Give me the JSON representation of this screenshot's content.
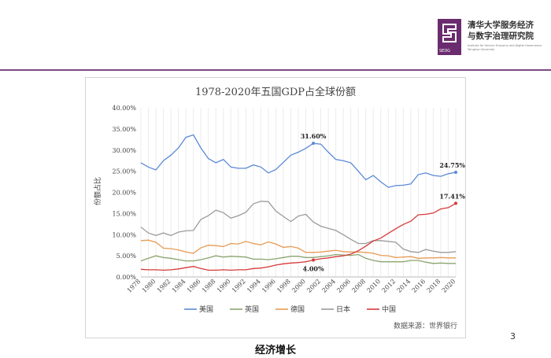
{
  "header": {
    "logo_name_line1": "清华大学服务经济",
    "logo_name_line2": "与数字治理研究院",
    "logo_abbr": "SEDG",
    "logo_english_line1": "Institute for Service Economy and Digital Governance",
    "logo_english_line2": "Tsinghua University"
  },
  "footer": {
    "page_number": "3",
    "caption": "经济增长"
  },
  "colors": {
    "us": "#5b8ad6",
    "uk": "#8aa56f",
    "de": "#e89b56",
    "jp": "#9c9c9c",
    "cn": "#d63a3a",
    "accent": "#7b4a82"
  },
  "chart_data": {
    "type": "line",
    "title": "1978-2020年五国GDP占全球份额",
    "ylabel": "份额占比",
    "xlabel": "",
    "source": "数据来源：世界银行",
    "ylim": [
      0,
      40
    ],
    "y_ticks": [
      "0.00%",
      "5.00%",
      "10.00%",
      "15.00%",
      "20.00%",
      "25.00%",
      "30.00%",
      "35.00%",
      "40.00%"
    ],
    "x": [
      1978,
      1979,
      1980,
      1981,
      1982,
      1983,
      1984,
      1985,
      1986,
      1987,
      1988,
      1989,
      1990,
      1991,
      1992,
      1993,
      1994,
      1995,
      1996,
      1997,
      1998,
      1999,
      2000,
      2001,
      2002,
      2003,
      2004,
      2005,
      2006,
      2007,
      2008,
      2009,
      2010,
      2011,
      2012,
      2013,
      2014,
      2015,
      2016,
      2017,
      2018,
      2019,
      2020
    ],
    "x_ticks": [
      "1978",
      "1980",
      "1982",
      "1984",
      "1986",
      "1988",
      "1990",
      "1992",
      "1994",
      "1996",
      "1998",
      "2000",
      "2002",
      "2004",
      "2006",
      "2008",
      "2010",
      "2012",
      "2014",
      "2016",
      "2018",
      "2020"
    ],
    "grid": true,
    "legend_position": "bottom",
    "series": [
      {
        "name": "美国",
        "color": "#5b8ad6",
        "values": [
          27.0,
          26.0,
          25.3,
          27.5,
          28.8,
          30.5,
          33.0,
          33.6,
          30.5,
          28.0,
          27.0,
          27.8,
          26.0,
          25.7,
          25.7,
          26.5,
          26.0,
          24.6,
          25.4,
          27.1,
          28.8,
          29.5,
          30.4,
          31.6,
          31.4,
          29.5,
          27.8,
          27.5,
          27.0,
          25.0,
          23.0,
          24.0,
          22.5,
          21.2,
          21.6,
          21.7,
          22.0,
          24.2,
          24.6,
          24.0,
          23.8,
          24.4,
          24.75
        ]
      },
      {
        "name": "英国",
        "color": "#8aa56f",
        "values": [
          3.8,
          4.4,
          5.0,
          4.6,
          4.4,
          4.1,
          3.8,
          3.8,
          4.1,
          4.5,
          5.0,
          4.7,
          4.9,
          4.8,
          4.7,
          4.2,
          4.2,
          4.1,
          4.3,
          4.6,
          4.9,
          4.9,
          4.6,
          4.6,
          4.8,
          5.0,
          5.3,
          5.2,
          5.1,
          5.3,
          4.4,
          3.9,
          3.6,
          3.6,
          3.6,
          3.6,
          3.9,
          3.9,
          3.5,
          3.2,
          3.3,
          3.2,
          3.2
        ]
      },
      {
        "name": "德国",
        "color": "#e89b56",
        "values": [
          8.6,
          8.7,
          8.2,
          6.8,
          6.7,
          6.4,
          5.9,
          5.6,
          6.9,
          7.5,
          7.4,
          7.2,
          7.9,
          7.8,
          8.4,
          7.9,
          7.6,
          8.3,
          7.8,
          7.0,
          7.2,
          6.8,
          5.8,
          5.8,
          5.9,
          6.1,
          6.3,
          6.0,
          5.9,
          5.9,
          5.8,
          5.6,
          5.1,
          5.0,
          4.6,
          4.7,
          4.8,
          4.4,
          4.5,
          4.5,
          4.6,
          4.5,
          4.5
        ]
      },
      {
        "name": "日本",
        "color": "#9c9c9c",
        "values": [
          11.8,
          10.4,
          9.8,
          10.4,
          9.8,
          10.6,
          10.9,
          11.0,
          13.6,
          14.5,
          15.8,
          15.2,
          13.9,
          14.5,
          15.3,
          17.3,
          17.9,
          17.8,
          15.6,
          14.3,
          13.1,
          14.4,
          14.8,
          13.0,
          12.0,
          11.5,
          11.0,
          10.0,
          8.9,
          7.9,
          7.9,
          8.6,
          8.6,
          8.4,
          8.2,
          6.6,
          6.0,
          5.8,
          6.5,
          6.1,
          5.8,
          5.8,
          6.0
        ]
      },
      {
        "name": "中国",
        "color": "#d63a3a",
        "values": [
          1.8,
          1.7,
          1.7,
          1.6,
          1.7,
          1.9,
          2.2,
          2.5,
          2.0,
          1.6,
          1.6,
          1.7,
          1.6,
          1.7,
          1.7,
          2.0,
          2.1,
          2.4,
          2.8,
          3.1,
          3.3,
          3.4,
          3.6,
          4.0,
          4.3,
          4.5,
          4.8,
          5.0,
          5.4,
          6.2,
          7.3,
          8.5,
          9.2,
          10.3,
          11.4,
          12.4,
          13.2,
          14.7,
          14.8,
          15.1,
          16.1,
          16.4,
          17.41
        ]
      }
    ],
    "annotations": [
      {
        "label": "31.60%",
        "series": "美国",
        "x": 2001
      },
      {
        "label": "24.75%",
        "series": "美国",
        "x": 2020
      },
      {
        "label": "17.41%",
        "series": "中国",
        "x": 2020
      },
      {
        "label": "4.00%",
        "series": "中国",
        "x": 2001
      }
    ]
  }
}
